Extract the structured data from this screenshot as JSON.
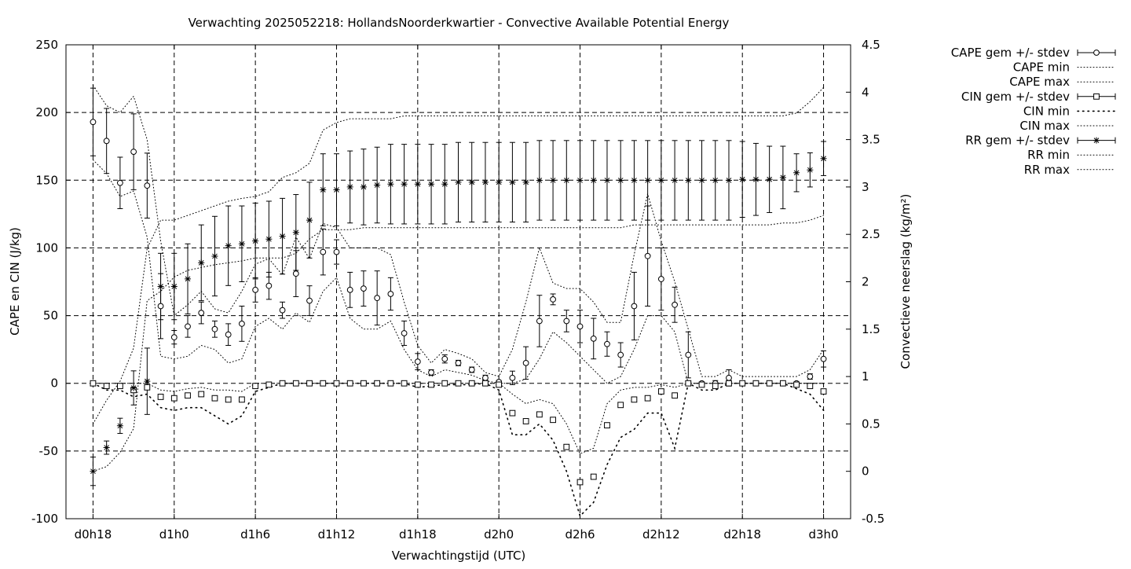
{
  "chart_data": {
    "type": "scatter",
    "title": "Verwachting 2025052218: HollandsNoorderkwartier - Convective Available Potential Energy",
    "xlabel": "Verwachtingstijd (UTC)",
    "ylabel": "CAPE en CIN (J/kg)",
    "y2label": "Convectieve neerslag (kg/m²)",
    "x_unit": "hours since d0h18",
    "xlim": [
      -2,
      56
    ],
    "ylim": [
      -100,
      250
    ],
    "y2lim": [
      -0.5,
      4.5
    ],
    "grid": true,
    "legend_position": "outside right, top",
    "x_ticks": [
      {
        "x": 0,
        "label": "d0h18"
      },
      {
        "x": 6,
        "label": "d1h0"
      },
      {
        "x": 12,
        "label": "d1h6"
      },
      {
        "x": 18,
        "label": "d1h12"
      },
      {
        "x": 24,
        "label": "d1h18"
      },
      {
        "x": 30,
        "label": "d2h0"
      },
      {
        "x": 36,
        "label": "d2h6"
      },
      {
        "x": 42,
        "label": "d2h12"
      },
      {
        "x": 48,
        "label": "d2h18"
      },
      {
        "x": 54,
        "label": "d3h0"
      }
    ],
    "y_ticks": [
      -100,
      -50,
      0,
      50,
      100,
      150,
      200,
      250
    ],
    "y2_ticks": [
      {
        "v": -0.5,
        "label": "-0.5"
      },
      {
        "v": 0,
        "label": "0"
      },
      {
        "v": 0.5,
        "label": "0.5"
      },
      {
        "v": 1,
        "label": "1"
      },
      {
        "v": 1.5,
        "label": "1.5"
      },
      {
        "v": 2,
        "label": "2"
      },
      {
        "v": 2.5,
        "label": "2.5"
      },
      {
        "v": 3,
        "label": "3"
      },
      {
        "v": 3.5,
        "label": "3.5"
      },
      {
        "v": 4,
        "label": "4"
      },
      {
        "v": 4.5,
        "label": "4.5"
      }
    ],
    "x": [
      0,
      1,
      2,
      3,
      4,
      5,
      6,
      7,
      8,
      9,
      10,
      11,
      12,
      13,
      14,
      15,
      16,
      17,
      18,
      19,
      20,
      21,
      22,
      23,
      24,
      25,
      26,
      27,
      28,
      29,
      30,
      31,
      32,
      33,
      34,
      35,
      36,
      37,
      38,
      39,
      40,
      41,
      42,
      43,
      44,
      45,
      46,
      47,
      48,
      49,
      50,
      51,
      52,
      53,
      54
    ],
    "series": [
      {
        "name": "CAPE gem +/- stdev",
        "axis": "y",
        "marker": "circle",
        "values": [
          193,
          179,
          148,
          171,
          146,
          57,
          34,
          42,
          52,
          40,
          36,
          44,
          69,
          72,
          54,
          81,
          61,
          97,
          97,
          69,
          70,
          63,
          66,
          37,
          16,
          8,
          18,
          15,
          10,
          4,
          1,
          4,
          15,
          46,
          62,
          46,
          42,
          33,
          29,
          21,
          57,
          94,
          77,
          58,
          21,
          0,
          0,
          4,
          0,
          0,
          0,
          0,
          0,
          5,
          18
        ],
        "stdev": [
          25,
          24,
          19,
          28,
          24,
          24,
          5,
          8,
          8,
          6,
          8,
          13,
          9,
          10,
          6,
          17,
          11,
          17,
          9,
          13,
          13,
          20,
          12,
          9,
          6,
          2,
          3,
          2,
          2,
          2,
          1,
          5,
          12,
          19,
          4,
          8,
          12,
          15,
          9,
          9,
          25,
          37,
          23,
          13,
          17,
          1,
          2,
          6,
          1,
          1,
          1,
          1,
          1,
          2,
          6
        ]
      },
      {
        "name": "CAPE min",
        "axis": "y",
        "line": "dotted",
        "values": [
          165,
          155,
          138,
          142,
          108,
          20,
          18,
          20,
          28,
          25,
          15,
          18,
          42,
          48,
          40,
          52,
          45,
          68,
          78,
          48,
          40,
          40,
          46,
          25,
          10,
          5,
          10,
          8,
          6,
          2,
          0,
          0,
          3,
          18,
          38,
          30,
          20,
          10,
          0,
          5,
          25,
          50,
          50,
          38,
          0,
          0,
          0,
          0,
          0,
          0,
          0,
          0,
          0,
          0,
          0
        ]
      },
      {
        "name": "CAPE max",
        "axis": "y",
        "line": "dotted",
        "values": [
          220,
          205,
          200,
          212,
          180,
          105,
          50,
          58,
          68,
          55,
          52,
          68,
          88,
          92,
          80,
          108,
          92,
          118,
          115,
          100,
          100,
          100,
          95,
          60,
          28,
          15,
          25,
          22,
          18,
          8,
          5,
          25,
          60,
          100,
          74,
          70,
          70,
          60,
          45,
          45,
          95,
          140,
          105,
          75,
          40,
          5,
          5,
          10,
          5,
          5,
          5,
          5,
          5,
          10,
          25
        ]
      },
      {
        "name": "CIN gem +/- stdev",
        "axis": "y",
        "marker": "square",
        "values": [
          0,
          -2,
          -2,
          -5,
          -3,
          -10,
          -11,
          -9,
          -8,
          -11,
          -12,
          -12,
          -2,
          -1,
          0,
          0,
          0,
          0,
          0,
          0,
          0,
          0,
          0,
          0,
          -1,
          -1,
          0,
          0,
          0,
          0,
          -1,
          -22,
          -28,
          -23,
          -27,
          -47,
          -73,
          -69,
          -31,
          -16,
          -12,
          -11,
          -6,
          -9,
          0,
          -1,
          -2,
          0,
          0,
          0,
          0,
          0,
          -1,
          -2,
          -6
        ]
      },
      {
        "name": "CIN min",
        "axis": "y",
        "line": "dotted",
        "values": [
          0,
          -5,
          -5,
          -10,
          -8,
          -18,
          -20,
          -18,
          -18,
          -24,
          -30,
          -24,
          -6,
          -3,
          0,
          0,
          0,
          0,
          0,
          0,
          0,
          0,
          0,
          0,
          -3,
          -2,
          -1,
          -1,
          -1,
          0,
          -5,
          -38,
          -38,
          -30,
          -42,
          -65,
          -98,
          -88,
          -60,
          -40,
          -34,
          -22,
          -22,
          -48,
          0,
          -5,
          -5,
          0,
          0,
          0,
          0,
          0,
          -4,
          -8,
          -20
        ]
      },
      {
        "name": "CIN max",
        "axis": "y",
        "line": "dotted",
        "values": [
          0,
          0,
          0,
          0,
          0,
          -5,
          -6,
          -4,
          -3,
          -5,
          -5,
          -6,
          0,
          0,
          0,
          0,
          0,
          0,
          0,
          0,
          0,
          0,
          0,
          0,
          0,
          0,
          0,
          0,
          0,
          0,
          0,
          -8,
          -15,
          -12,
          -15,
          -30,
          -52,
          -48,
          -15,
          -5,
          -3,
          -3,
          -1,
          -3,
          0,
          0,
          0,
          0,
          0,
          0,
          0,
          0,
          0,
          0,
          0
        ]
      },
      {
        "name": "RR gem +/- stdev",
        "axis": "y2",
        "marker": "star",
        "values": [
          0,
          0.25,
          0.48,
          0.88,
          0.95,
          1.95,
          1.95,
          2.03,
          2.2,
          2.27,
          2.38,
          2.4,
          2.43,
          2.45,
          2.48,
          2.52,
          2.65,
          2.97,
          2.97,
          3,
          3,
          3.02,
          3.03,
          3.03,
          3.03,
          3.03,
          3.03,
          3.05,
          3.05,
          3.05,
          3.05,
          3.05,
          3.05,
          3.07,
          3.07,
          3.07,
          3.07,
          3.07,
          3.07,
          3.07,
          3.07,
          3.07,
          3.07,
          3.07,
          3.07,
          3.07,
          3.07,
          3.07,
          3.08,
          3.08,
          3.08,
          3.1,
          3.15,
          3.18,
          3.3
        ],
        "stdev": [
          0.15,
          0.07,
          0.08,
          0.18,
          0.35,
          0.35,
          0.35,
          0.37,
          0.4,
          0.42,
          0.42,
          0.4,
          0.4,
          0.4,
          0.4,
          0.4,
          0.4,
          0.38,
          0.38,
          0.38,
          0.4,
          0.4,
          0.42,
          0.42,
          0.42,
          0.42,
          0.42,
          0.42,
          0.42,
          0.42,
          0.42,
          0.42,
          0.42,
          0.42,
          0.42,
          0.42,
          0.42,
          0.42,
          0.42,
          0.42,
          0.42,
          0.42,
          0.42,
          0.42,
          0.42,
          0.42,
          0.42,
          0.42,
          0.4,
          0.38,
          0.35,
          0.33,
          0.2,
          0.18,
          0.18
        ]
      },
      {
        "name": "RR min",
        "axis": "y2",
        "line": "dotted",
        "values": [
          0,
          0.05,
          0.2,
          0.45,
          1.8,
          1.9,
          2.05,
          2.12,
          2.15,
          2.18,
          2.2,
          2.22,
          2.25,
          2.25,
          2.25,
          2.3,
          2.45,
          2.55,
          2.55,
          2.55,
          2.57,
          2.57,
          2.57,
          2.57,
          2.57,
          2.57,
          2.57,
          2.57,
          2.57,
          2.57,
          2.57,
          2.57,
          2.57,
          2.57,
          2.57,
          2.57,
          2.57,
          2.57,
          2.57,
          2.57,
          2.6,
          2.6,
          2.6,
          2.6,
          2.6,
          2.6,
          2.6,
          2.6,
          2.6,
          2.6,
          2.6,
          2.62,
          2.62,
          2.65,
          2.7
        ]
      },
      {
        "name": "RR max",
        "axis": "y2",
        "line": "dotted",
        "values": [
          0.5,
          0.75,
          0.95,
          1.3,
          2.35,
          2.65,
          2.65,
          2.7,
          2.75,
          2.8,
          2.85,
          2.88,
          2.9,
          2.95,
          3.1,
          3.15,
          3.25,
          3.6,
          3.68,
          3.72,
          3.72,
          3.72,
          3.72,
          3.75,
          3.75,
          3.75,
          3.75,
          3.75,
          3.75,
          3.75,
          3.75,
          3.75,
          3.75,
          3.75,
          3.75,
          3.75,
          3.75,
          3.75,
          3.75,
          3.75,
          3.75,
          3.75,
          3.75,
          3.75,
          3.75,
          3.75,
          3.75,
          3.75,
          3.75,
          3.75,
          3.75,
          3.75,
          3.78,
          3.9,
          4.05
        ]
      }
    ]
  }
}
